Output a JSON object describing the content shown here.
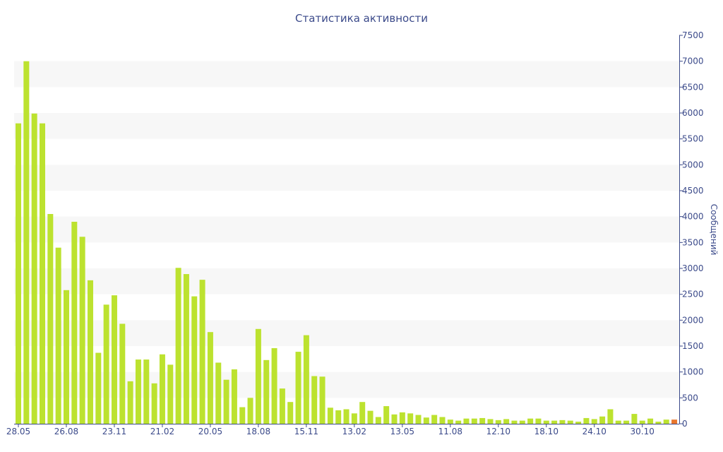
{
  "chart_data": {
    "type": "bar",
    "title": "Статистика активности",
    "ylabel": "Сообщений",
    "xlabel": "",
    "ylim": [
      0,
      7500
    ],
    "yticks": [
      0,
      500,
      1000,
      1500,
      2000,
      2500,
      3000,
      3500,
      4000,
      4500,
      5000,
      5500,
      6000,
      6500,
      7000,
      7500
    ],
    "y_axis_side": "right",
    "grid": "alternating horizontal bands",
    "x_tick_labels": [
      {
        "index": 0,
        "label": "28.05"
      },
      {
        "index": 6,
        "label": "26.08"
      },
      {
        "index": 12,
        "label": "23.11"
      },
      {
        "index": 18,
        "label": "21.02"
      },
      {
        "index": 24,
        "label": "20.05"
      },
      {
        "index": 30,
        "label": "18.08"
      },
      {
        "index": 36,
        "label": "15.11"
      },
      {
        "index": 42,
        "label": "13.02"
      },
      {
        "index": 48,
        "label": "13.05"
      },
      {
        "index": 54,
        "label": "11.08"
      },
      {
        "index": 60,
        "label": "12.10"
      },
      {
        "index": 66,
        "label": "18.10"
      },
      {
        "index": 72,
        "label": "24.10"
      },
      {
        "index": 78,
        "label": "30.10"
      }
    ],
    "values": [
      5800,
      7000,
      5990,
      5800,
      4050,
      3400,
      2580,
      3900,
      3610,
      2770,
      1370,
      2300,
      2480,
      1930,
      820,
      1240,
      1240,
      780,
      1340,
      1140,
      3010,
      2890,
      2460,
      2780,
      1770,
      1180,
      850,
      1050,
      320,
      500,
      1830,
      1230,
      1460,
      680,
      420,
      1390,
      1710,
      920,
      910,
      310,
      260,
      280,
      200,
      420,
      250,
      130,
      340,
      180,
      220,
      200,
      170,
      120,
      170,
      130,
      80,
      60,
      100,
      100,
      110,
      90,
      70,
      90,
      60,
      60,
      100,
      100,
      60,
      60,
      70,
      60,
      40,
      110,
      90,
      140,
      280,
      60,
      60,
      190,
      60,
      100,
      40,
      80,
      80
    ],
    "colors": {
      "bar": "#bce22f",
      "last_bar": "#e9762d",
      "band": "#f7f7f7",
      "axis": "#3b4a8a"
    }
  }
}
